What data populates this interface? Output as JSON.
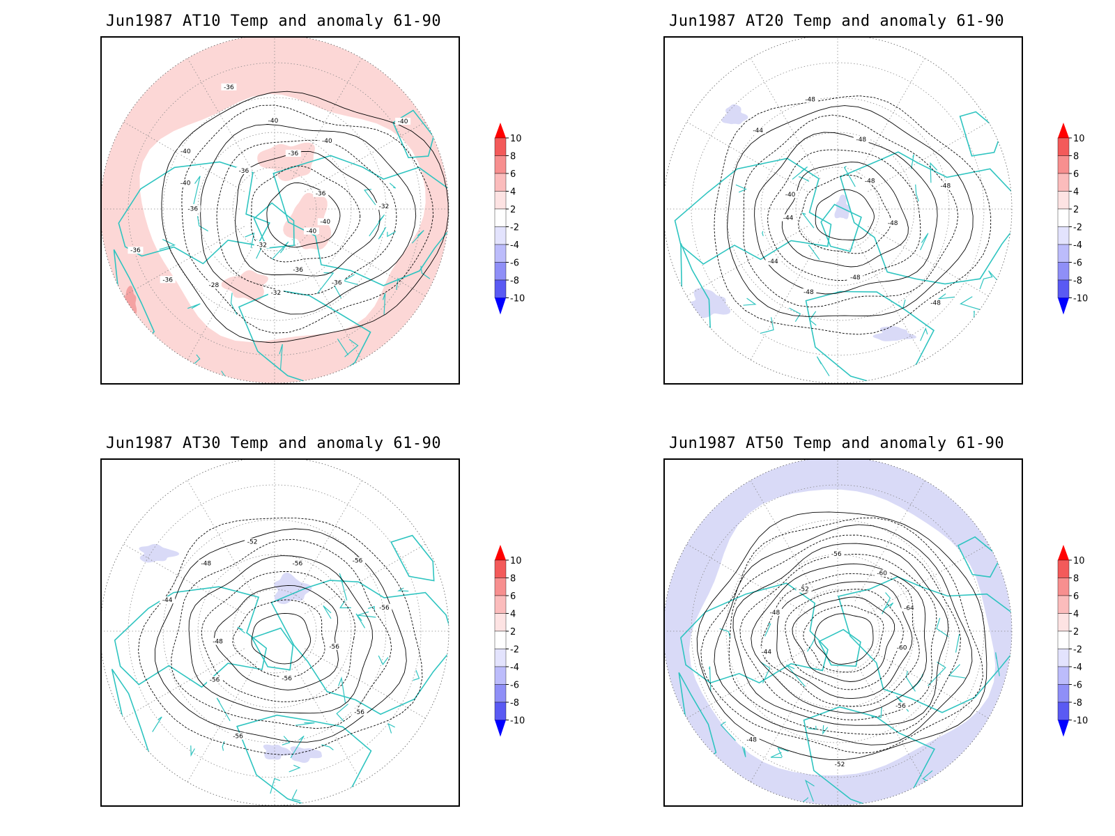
{
  "panels": [
    {
      "title": "Jun1987 AT10 Temp and anomaly 61-90",
      "anomaly_fill": "#fcd7d6",
      "fill_mode": "ring-red",
      "contour_labels": [
        "-40",
        "-40",
        "-36",
        "-36",
        "-32",
        "-32",
        "-28",
        "-36",
        "-36",
        "-36",
        "-40",
        "-40",
        "-36",
        "-36",
        "-40",
        "-36",
        "-40",
        "-40",
        "-36",
        "-32"
      ]
    },
    {
      "title": "Jun1987 AT20 Temp and anomaly 61-90",
      "anomaly_fill": "#d9daf7",
      "fill_mode": "spots-blue",
      "contour_labels": [
        "-48",
        "-48",
        "-48",
        "-48",
        "-44",
        "-44",
        "-40",
        "-44",
        "-48",
        "-48",
        "-48",
        "-48"
      ]
    },
    {
      "title": "Jun1987 AT30 Temp and anomaly 61-90",
      "anomaly_fill": "#d9daf7",
      "fill_mode": "spots-blue",
      "contour_labels": [
        "-56",
        "-56",
        "-56",
        "-56",
        "-56",
        "-48",
        "-44",
        "-48",
        "-52",
        "-56",
        "-56",
        "-56"
      ]
    },
    {
      "title": "Jun1987 AT50 Temp and anomaly 61-90",
      "anomaly_fill": "#d9daf7",
      "fill_mode": "ring-blue",
      "contour_labels": [
        "-60",
        "-56",
        "-52",
        "-48",
        "-44",
        "-48",
        "-52",
        "-56",
        "-60",
        "-64"
      ]
    }
  ],
  "colorbar": {
    "labels": [
      "10",
      "8",
      "6",
      "4",
      "2",
      "-2",
      "-4",
      "-6",
      "-8",
      "-10"
    ],
    "colors": [
      "#ff0000",
      "#f35a5a",
      "#f78f8f",
      "#fbbcbc",
      "#fde3e3",
      "#ffffff",
      "#e3e3fd",
      "#bcbcfb",
      "#8f8ff7",
      "#5a5af3",
      "#0000ff"
    ]
  },
  "style": {
    "coast_color": "#2ec4c0",
    "contour_color": "#000000",
    "grid_color": "#888888"
  }
}
